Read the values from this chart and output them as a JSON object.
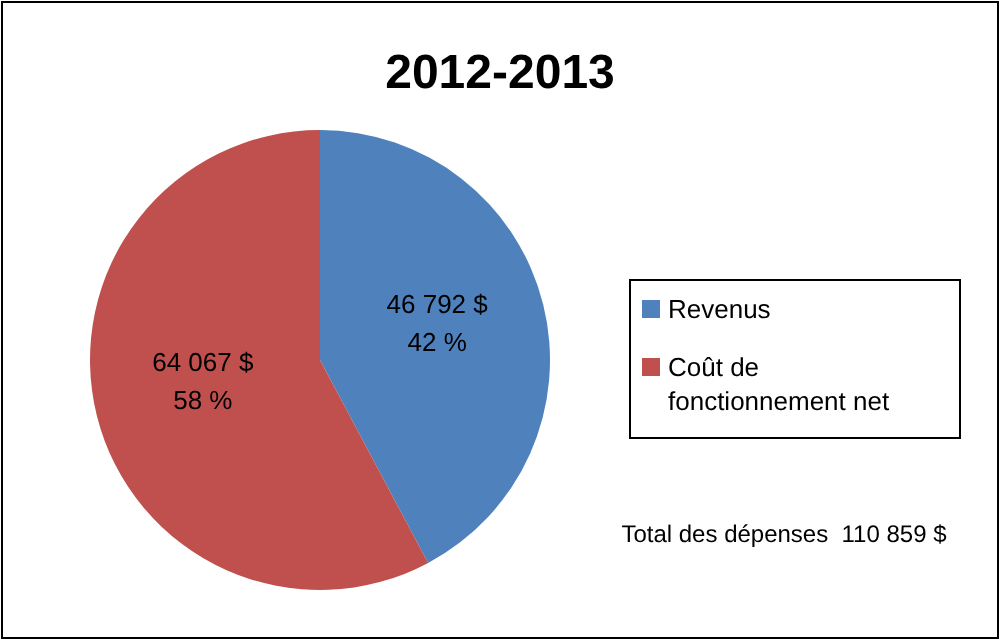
{
  "chart_data": {
    "type": "pie",
    "title": "2012-2013",
    "categories": [
      "Revenus",
      "Coût de fonctionnement net"
    ],
    "values": [
      46792,
      64067
    ],
    "colors": [
      "#4f81bd",
      "#c0504d"
    ],
    "value_labels": [
      "46 792 $\n42 %",
      "64 067 $\n58 %"
    ],
    "legend": "right",
    "annotations": [
      "Total des dépenses  110 859 $"
    ]
  }
}
